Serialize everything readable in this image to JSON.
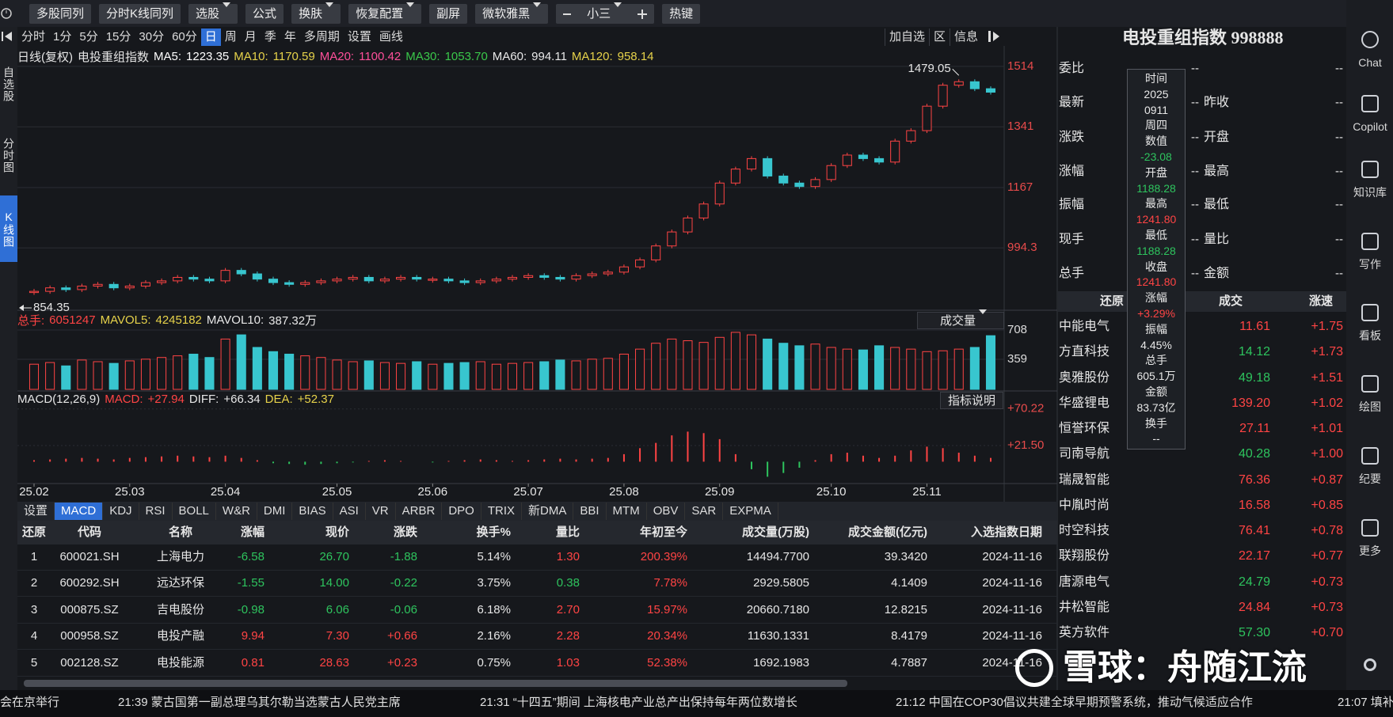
{
  "top_toolbar": [
    "多股同列",
    "分时K线同列",
    "选股",
    "公式",
    "换肤",
    "恢复配置",
    "副屏",
    "微软雅黑",
    "小三",
    "热键"
  ],
  "left_tabs": [
    "自选股",
    "分时图",
    "K线图"
  ],
  "period_tabs": [
    "分时",
    "1分",
    "5分",
    "15分",
    "30分",
    "60分",
    "日",
    "周",
    "月",
    "季",
    "年",
    "多周期",
    "设置",
    "画线"
  ],
  "chart_actions": [
    "加自选",
    "区",
    "信息"
  ],
  "kline": {
    "label": "日线(复权)",
    "name": "电投重组指数",
    "ma": [
      {
        "name": "MA5:",
        "value": "1223.35",
        "color": "#ffffff"
      },
      {
        "name": "MA10:",
        "value": "1170.59",
        "color": "#e6d24a"
      },
      {
        "name": "MA20:",
        "value": "1100.42",
        "color": "#ff4f9a"
      },
      {
        "name": "MA30:",
        "value": "1053.70",
        "color": "#3ac84a"
      },
      {
        "name": "MA60:",
        "value": "994.11",
        "color": "#e8e8e8"
      },
      {
        "name": "MA120:",
        "value": "958.14",
        "color": "#e6d24a"
      }
    ],
    "ylim": [
      825,
      1568
    ],
    "yticks": [
      994.3,
      1167,
      1341,
      1514
    ],
    "high": 1479.05,
    "low": 854.35,
    "xticks": [
      {
        "value": 0,
        "label": "25.02"
      },
      {
        "value": 6,
        "label": "25.03"
      },
      {
        "value": 12,
        "label": "25.04"
      },
      {
        "value": 19,
        "label": "25.05"
      },
      {
        "value": 25,
        "label": "25.06"
      },
      {
        "value": 31,
        "label": "25.07"
      },
      {
        "value": 37,
        "label": "25.08"
      },
      {
        "value": 43,
        "label": "25.09"
      },
      {
        "value": 50,
        "label": "25.10"
      },
      {
        "value": 56,
        "label": "25.11"
      }
    ],
    "closes": [
      870,
      880,
      875,
      885,
      890,
      880,
      885,
      895,
      900,
      910,
      905,
      900,
      930,
      920,
      905,
      895,
      890,
      895,
      900,
      905,
      910,
      900,
      905,
      910,
      905,
      905,
      900,
      895,
      900,
      905,
      910,
      915,
      910,
      905,
      915,
      920,
      925,
      940,
      960,
      1000,
      1040,
      1080,
      1120,
      1180,
      1220,
      1250,
      1200,
      1180,
      1170,
      1190,
      1230,
      1260,
      1250,
      1240,
      1300,
      1330,
      1400,
      1460,
      1470,
      1450,
      1440
    ]
  },
  "volume": {
    "info": [
      {
        "name": "总手:",
        "value": "6051247",
        "color": "#ff4444"
      },
      {
        "name": "MAVOL5:",
        "value": "4245182",
        "color": "#e6d24a"
      },
      {
        "name": "MAVOL10:",
        "value": "387.32万",
        "color": "#e8e8e8"
      }
    ],
    "selector": "成交量",
    "ylim": [
      0,
      868
    ],
    "yticks": [
      359,
      708
    ],
    "values": [
      300,
      320,
      280,
      350,
      330,
      310,
      340,
      360,
      380,
      400,
      420,
      380,
      600,
      650,
      500,
      450,
      420,
      400,
      380,
      350,
      330,
      340,
      320,
      310,
      330,
      300,
      310,
      320,
      330,
      300,
      310,
      320,
      330,
      350,
      340,
      360,
      370,
      420,
      480,
      550,
      600,
      580,
      560,
      620,
      680,
      650,
      600,
      550,
      520,
      540,
      500,
      480,
      470,
      520,
      500,
      480,
      450,
      460,
      480,
      500,
      640
    ]
  },
  "macd": {
    "title": "MACD(12,26,9)",
    "info": [
      {
        "name": "MACD:",
        "value": "+27.94",
        "color": "#ff4444"
      },
      {
        "name": "DIFF:",
        "value": "+66.34",
        "color": "#e8e8e8"
      },
      {
        "name": "DEA:",
        "value": "+52.37",
        "color": "#e6d24a"
      }
    ],
    "help": "指标说明",
    "ylim": [
      -28,
      92
    ],
    "yticks": [
      {
        "value": 21.5,
        "label": "+21.50"
      },
      {
        "value": 70.22,
        "label": "+70.22"
      }
    ],
    "values": [
      2,
      3,
      4,
      5,
      4,
      3,
      5,
      6,
      7,
      8,
      7,
      6,
      8,
      5,
      2,
      -2,
      -3,
      -4,
      -3,
      -2,
      -1,
      1,
      2,
      1,
      0,
      -1,
      1,
      2,
      3,
      2,
      1,
      2,
      3,
      4,
      3,
      4,
      5,
      10,
      18,
      25,
      35,
      40,
      38,
      30,
      10,
      -10,
      -20,
      -15,
      -8,
      2,
      10,
      12,
      8,
      5,
      8,
      15,
      20,
      18,
      12,
      8,
      5
    ]
  },
  "indicator_tabs": [
    "设置",
    "MACD",
    "KDJ",
    "RSI",
    "BOLL",
    "W&R",
    "DMI",
    "BIAS",
    "ASI",
    "VR",
    "ARBR",
    "DPO",
    "TRIX",
    "新DMA",
    "BBI",
    "MTM",
    "OBV",
    "SAR",
    "EXPMA"
  ],
  "table": {
    "header": [
      "还原",
      "代码",
      "名称",
      "涨幅",
      "现价",
      "涨跌",
      "换手%",
      "量比",
      "年初至今",
      "成交量(万股)",
      "成交金额(亿元)",
      "入选指数日期"
    ],
    "rows": [
      [
        "1",
        "600021.SH",
        "上海电力",
        "-6.58",
        "26.70",
        "-1.88",
        "5.14%",
        "1.30",
        "200.39%",
        "14494.7700",
        "39.3420",
        "2024-11-16"
      ],
      [
        "2",
        "600292.SH",
        "远达环保",
        "-1.55",
        "14.00",
        "-0.22",
        "3.75%",
        "0.38",
        "7.78%",
        "2929.5805",
        "4.1409",
        "2024-11-16"
      ],
      [
        "3",
        "000875.SZ",
        "吉电股份",
        "-0.98",
        "6.06",
        "-0.06",
        "6.18%",
        "2.70",
        "15.97%",
        "20660.7180",
        "12.8215",
        "2024-11-16"
      ],
      [
        "4",
        "000958.SZ",
        "电投产融",
        "9.94",
        "7.30",
        "+0.66",
        "2.16%",
        "2.28",
        "20.34%",
        "11630.1331",
        "8.4179",
        "2024-11-16"
      ],
      [
        "5",
        "002128.SZ",
        "电投能源",
        "0.81",
        "28.63",
        "+0.23",
        "0.75%",
        "1.03",
        "52.38%",
        "1692.1983",
        "4.7887",
        "2024-11-16"
      ]
    ]
  },
  "quote": {
    "title": "电投重组指数 998888",
    "rows": [
      {
        "label": "委比",
        "value": "--",
        "right_value": "--"
      },
      {
        "label": "最新",
        "value": "--",
        "right_label": "昨收",
        "right_value": "--"
      },
      {
        "label": "涨跌",
        "value": "--",
        "right_label": "开盘",
        "right_value": "--"
      },
      {
        "label": "涨幅",
        "value": "--",
        "right_label": "最高",
        "right_value": "--"
      },
      {
        "label": "振幅",
        "value": "--",
        "right_label": "最低",
        "right_value": "--"
      },
      {
        "label": "现手",
        "value": "--",
        "right_label": "量比",
        "right_value": "--"
      },
      {
        "label": "总手",
        "value": "--",
        "right_label": "金额",
        "right_value": "--"
      }
    ]
  },
  "stock_list": {
    "header": [
      "还原",
      "成交",
      "涨速"
    ],
    "rows": [
      {
        "name": "中能电气",
        "price": "11.61",
        "speed": "+1.75",
        "color": "#ff4444"
      },
      {
        "name": "方直科技",
        "price": "14.12",
        "speed": "+1.73",
        "color": "#2ec45e"
      },
      {
        "name": "奥雅股份",
        "price": "49.18",
        "speed": "+1.51",
        "color": "#2ec45e"
      },
      {
        "name": "华盛锂电",
        "price": "139.20",
        "speed": "+1.02",
        "color": "#ff4444"
      },
      {
        "name": "恒誉环保",
        "price": "27.11",
        "speed": "+1.01",
        "color": "#ff4444"
      },
      {
        "name": "司南导航",
        "price": "40.28",
        "speed": "+1.00",
        "color": "#2ec45e"
      },
      {
        "name": "瑞晟智能",
        "price": "76.36",
        "speed": "+0.87",
        "color": "#ff4444"
      },
      {
        "name": "中胤时尚",
        "price": "16.58",
        "speed": "+0.85",
        "color": "#ff4444"
      },
      {
        "name": "时空科技",
        "price": "76.41",
        "speed": "+0.78",
        "color": "#ff4444"
      },
      {
        "name": "联翔股份",
        "price": "22.17",
        "speed": "+0.77",
        "color": "#ff4444"
      },
      {
        "name": "唐源电气",
        "price": "24.79",
        "speed": "+0.73",
        "color": "#2ec45e"
      },
      {
        "name": "井松智能",
        "price": "24.84",
        "speed": "+0.73",
        "color": "#ff4444"
      },
      {
        "name": "英方软件",
        "price": "57.30",
        "speed": "+0.70",
        "color": "#2ec45e"
      }
    ]
  },
  "tooltip": [
    {
      "text": "时间",
      "color": "#e8e8e8"
    },
    {
      "text": "2025",
      "color": "#e8e8e8"
    },
    {
      "text": "0911",
      "color": "#e8e8e8"
    },
    {
      "text": "周四",
      "color": "#e8e8e8"
    },
    {
      "text": "数值",
      "color": "#e8e8e8"
    },
    {
      "text": "-23.08",
      "color": "#2ec45e"
    },
    {
      "text": "开盘",
      "color": "#e8e8e8"
    },
    {
      "text": "1188.28",
      "color": "#2ec45e"
    },
    {
      "text": "最高",
      "color": "#e8e8e8"
    },
    {
      "text": "1241.80",
      "color": "#ff4444"
    },
    {
      "text": "最低",
      "color": "#e8e8e8"
    },
    {
      "text": "1188.28",
      "color": "#2ec45e"
    },
    {
      "text": "收盘",
      "color": "#e8e8e8"
    },
    {
      "text": "1241.80",
      "color": "#ff4444"
    },
    {
      "text": "涨幅",
      "color": "#e8e8e8"
    },
    {
      "text": "+3.29%",
      "color": "#ff4444"
    },
    {
      "text": "振幅",
      "color": "#e8e8e8"
    },
    {
      "text": "4.45%",
      "color": "#e8e8e8"
    },
    {
      "text": "总手",
      "color": "#e8e8e8"
    },
    {
      "text": "605.1万",
      "color": "#e8e8e8"
    },
    {
      "text": "金额",
      "color": "#e8e8e8"
    },
    {
      "text": "83.73亿",
      "color": "#e8e8e8"
    },
    {
      "text": "换手",
      "color": "#e8e8e8"
    },
    {
      "text": "--",
      "color": "#e8e8e8"
    }
  ],
  "sidebar": [
    "Chat",
    "Copilot",
    "知识库",
    "写作",
    "看板",
    "绘图",
    "纪要",
    "更多"
  ],
  "watermark": "雪球：舟随江流",
  "ticker": [
    "会在京举行",
    "21:39 蒙古国第一副总理乌其尔勒当选蒙古人民党主席",
    "21:31 “十四五”期间 上海核电产业总产出保持每年两位数增长",
    "21:12 中国在COP30倡议共建全球早期预警系统，推动气候适应合作",
    "21:07 填补"
  ]
}
